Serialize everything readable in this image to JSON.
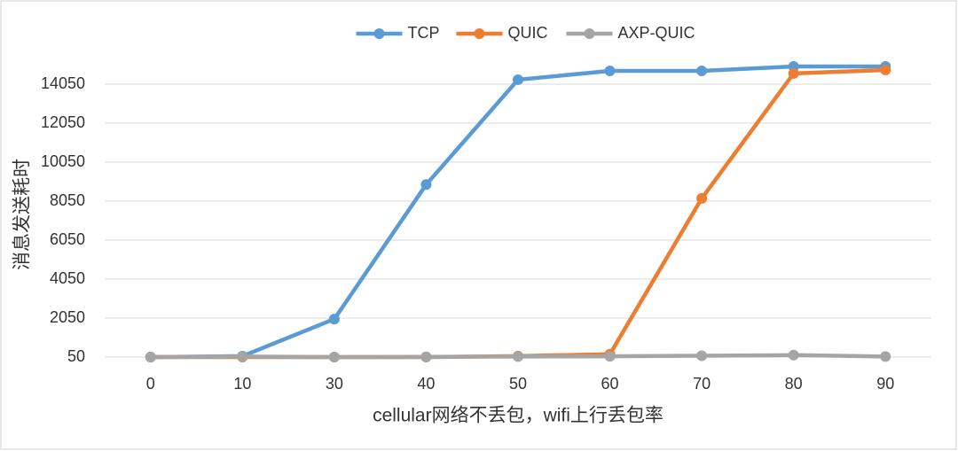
{
  "chart_data": {
    "type": "line",
    "x_label": "cellular网络不丢包，wifi上行丢包率",
    "y_label": "消息发送耗时",
    "categories": [
      "0",
      "10",
      "30",
      "40",
      "50",
      "60",
      "70",
      "80",
      "90"
    ],
    "series": [
      {
        "name": "TCP",
        "color": "#5b9bd5",
        "values": [
          50,
          100,
          2000,
          8900,
          14280,
          14730,
          14730,
          14960,
          14960
        ]
      },
      {
        "name": "QUIC",
        "color": "#ed7d31",
        "values": [
          50,
          50,
          50,
          50,
          100,
          200,
          8190,
          14600,
          14780
        ]
      },
      {
        "name": "AXP-QUIC",
        "color": "#a5a5a5",
        "values": [
          50,
          80,
          50,
          60,
          80,
          90,
          120,
          150,
          80
        ]
      }
    ],
    "ylim": [
      50,
      15050
    ],
    "yticks": [
      50,
      2050,
      4050,
      6050,
      8050,
      10050,
      12050,
      14050
    ],
    "grid": true,
    "legend": "top"
  }
}
